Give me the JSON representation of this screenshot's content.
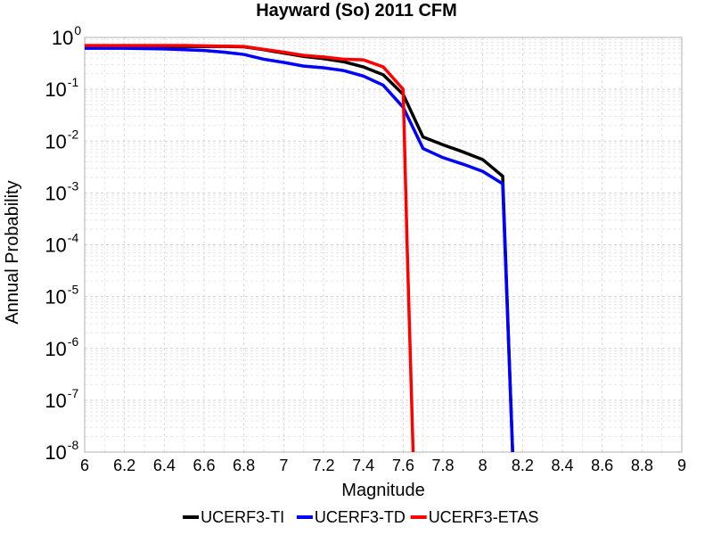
{
  "chart_data": {
    "type": "line",
    "title": "Hayward (So) 2011 CFM",
    "xlabel": "Magnitude",
    "ylabel": "Annual Probability",
    "xlim": [
      6,
      9
    ],
    "ylim": [
      1e-08,
      1
    ],
    "yscale": "log",
    "grid": true,
    "legend_position": "bottom",
    "x_ticks": [
      "6",
      "6.2",
      "6.4",
      "6.6",
      "6.8",
      "7",
      "7.2",
      "7.4",
      "7.6",
      "7.8",
      "8",
      "8.2",
      "8.4",
      "8.6",
      "8.8",
      "9"
    ],
    "y_ticks": [
      {
        "base": "10",
        "exp": "0"
      },
      {
        "base": "10",
        "exp": "-1"
      },
      {
        "base": "10",
        "exp": "-2"
      },
      {
        "base": "10",
        "exp": "-3"
      },
      {
        "base": "10",
        "exp": "-4"
      },
      {
        "base": "10",
        "exp": "-5"
      },
      {
        "base": "10",
        "exp": "-6"
      },
      {
        "base": "10",
        "exp": "-7"
      },
      {
        "base": "10",
        "exp": "-8"
      }
    ],
    "series": [
      {
        "name": "UCERF3-TI",
        "color": "#000000",
        "x": [
          6.0,
          6.1,
          6.2,
          6.3,
          6.4,
          6.5,
          6.6,
          6.7,
          6.8,
          6.9,
          7.0,
          7.1,
          7.2,
          7.3,
          7.4,
          7.5,
          7.6,
          7.7,
          7.8,
          7.9,
          8.0,
          8.1,
          8.15
        ],
        "y": [
          0.68,
          0.68,
          0.68,
          0.68,
          0.68,
          0.67,
          0.67,
          0.67,
          0.66,
          0.58,
          0.5,
          0.43,
          0.39,
          0.34,
          0.27,
          0.19,
          0.08,
          0.012,
          0.0085,
          0.0062,
          0.0044,
          0.0021,
          1e-08
        ]
      },
      {
        "name": "UCERF3-TD",
        "color": "#0000ff",
        "x": [
          6.0,
          6.1,
          6.2,
          6.3,
          6.4,
          6.5,
          6.6,
          6.7,
          6.8,
          6.9,
          7.0,
          7.1,
          7.2,
          7.3,
          7.4,
          7.5,
          7.6,
          7.7,
          7.8,
          7.9,
          8.0,
          8.1,
          8.15
        ],
        "y": [
          0.62,
          0.62,
          0.62,
          0.61,
          0.6,
          0.58,
          0.56,
          0.52,
          0.47,
          0.38,
          0.33,
          0.28,
          0.26,
          0.23,
          0.18,
          0.12,
          0.045,
          0.0072,
          0.0048,
          0.0036,
          0.0026,
          0.0015,
          1e-08
        ]
      },
      {
        "name": "UCERF3-ETAS",
        "color": "#ff0000",
        "x": [
          6.0,
          6.1,
          6.2,
          6.3,
          6.4,
          6.5,
          6.6,
          6.7,
          6.8,
          6.9,
          7.0,
          7.1,
          7.2,
          7.3,
          7.4,
          7.5,
          7.6,
          7.62,
          7.65
        ],
        "y": [
          0.7,
          0.7,
          0.7,
          0.7,
          0.7,
          0.7,
          0.69,
          0.68,
          0.67,
          0.59,
          0.52,
          0.45,
          0.42,
          0.38,
          0.37,
          0.27,
          0.1,
          0.0001,
          1e-08
        ]
      }
    ]
  }
}
